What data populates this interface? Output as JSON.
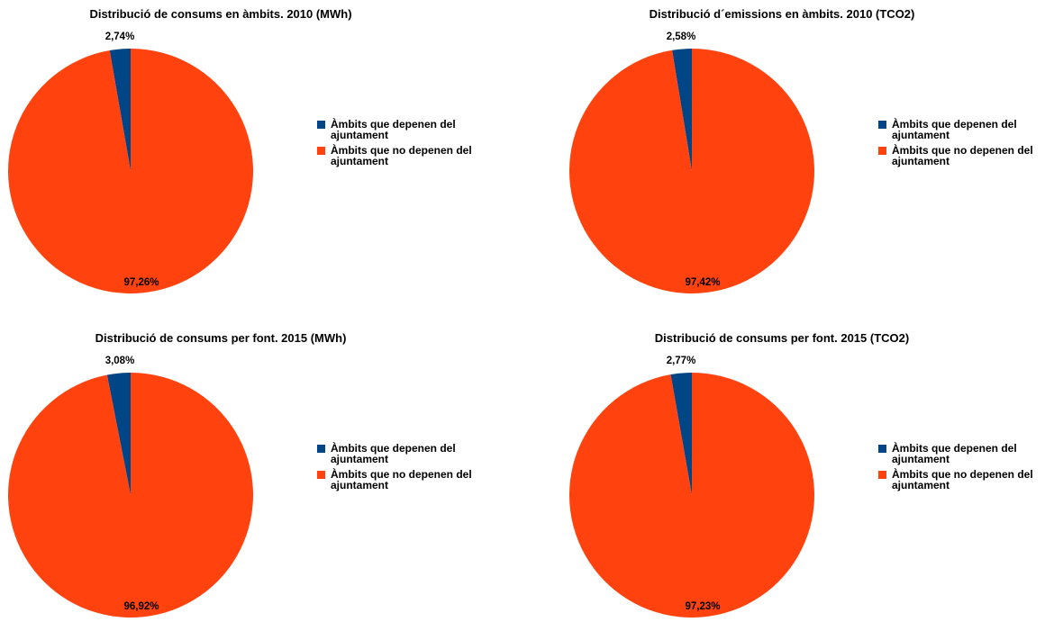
{
  "chart_data": [
    {
      "type": "pie",
      "title": "Distribució de consums en àmbits. 2010 (MWh)",
      "categories": [
        "Àmbits que depenen del ajuntament",
        "Àmbits que no depenen del ajuntament"
      ],
      "values": [
        2.74,
        97.26
      ],
      "value_labels": [
        "2,74%",
        "97,26%"
      ],
      "colors": [
        "#004586",
        "#ff420e"
      ],
      "legend_position": "right"
    },
    {
      "type": "pie",
      "title": "Distribució d´emissions en àmbits. 2010 (TCO2)",
      "categories": [
        "Àmbits que depenen del ajuntament",
        "Àmbits que no depenen del ajuntament"
      ],
      "values": [
        2.58,
        97.42
      ],
      "value_labels": [
        "2,58%",
        "97,42%"
      ],
      "colors": [
        "#004586",
        "#ff420e"
      ],
      "legend_position": "right"
    },
    {
      "type": "pie",
      "title": "Distribució de consums per font. 2015 (MWh)",
      "categories": [
        "Àmbits que depenen del ajuntament",
        "Àmbits que no depenen del ajuntament"
      ],
      "values": [
        3.08,
        96.92
      ],
      "value_labels": [
        "3,08%",
        "96,92%"
      ],
      "colors": [
        "#004586",
        "#ff420e"
      ],
      "legend_position": "right"
    },
    {
      "type": "pie",
      "title": "Distribució de consums per font. 2015 (TCO2)",
      "categories": [
        "Àmbits que depenen del ajuntament",
        "Àmbits que no depenen del ajuntament"
      ],
      "values": [
        2.77,
        97.23
      ],
      "value_labels": [
        "2,77%",
        "97,23%"
      ],
      "colors": [
        "#004586",
        "#ff420e"
      ],
      "legend_position": "right"
    }
  ],
  "legend": {
    "items": [
      {
        "label_line1": "Àmbits que depenen del",
        "label_line2": "ajuntament",
        "color": "#004586"
      },
      {
        "label_line1": "Àmbits que no depenen del",
        "label_line2": "ajuntament",
        "color": "#ff420e"
      }
    ]
  }
}
